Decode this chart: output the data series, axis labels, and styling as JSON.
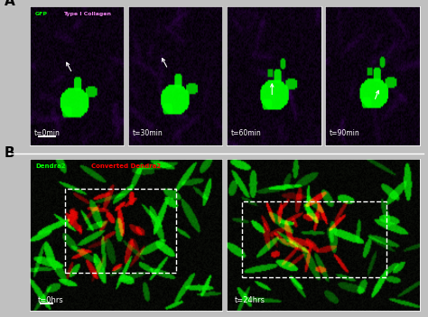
{
  "panel_A_label": "A",
  "panel_B_label": "B",
  "panel_A_times": [
    "t=0min",
    "t=30min",
    "t=60min",
    "t=90min"
  ],
  "panel_B_times": [
    "t=0hrs",
    "t=24hrs"
  ],
  "panel_A_legend_green": "GFP",
  "panel_A_legend_purple": "Type I Collagen",
  "panel_B_legend_green": "Dendra2",
  "panel_B_legend_red": "Converted Dendra2",
  "bg_color": "#c8c8c8",
  "panel_border_color": "white",
  "scale_bar_color": "white"
}
